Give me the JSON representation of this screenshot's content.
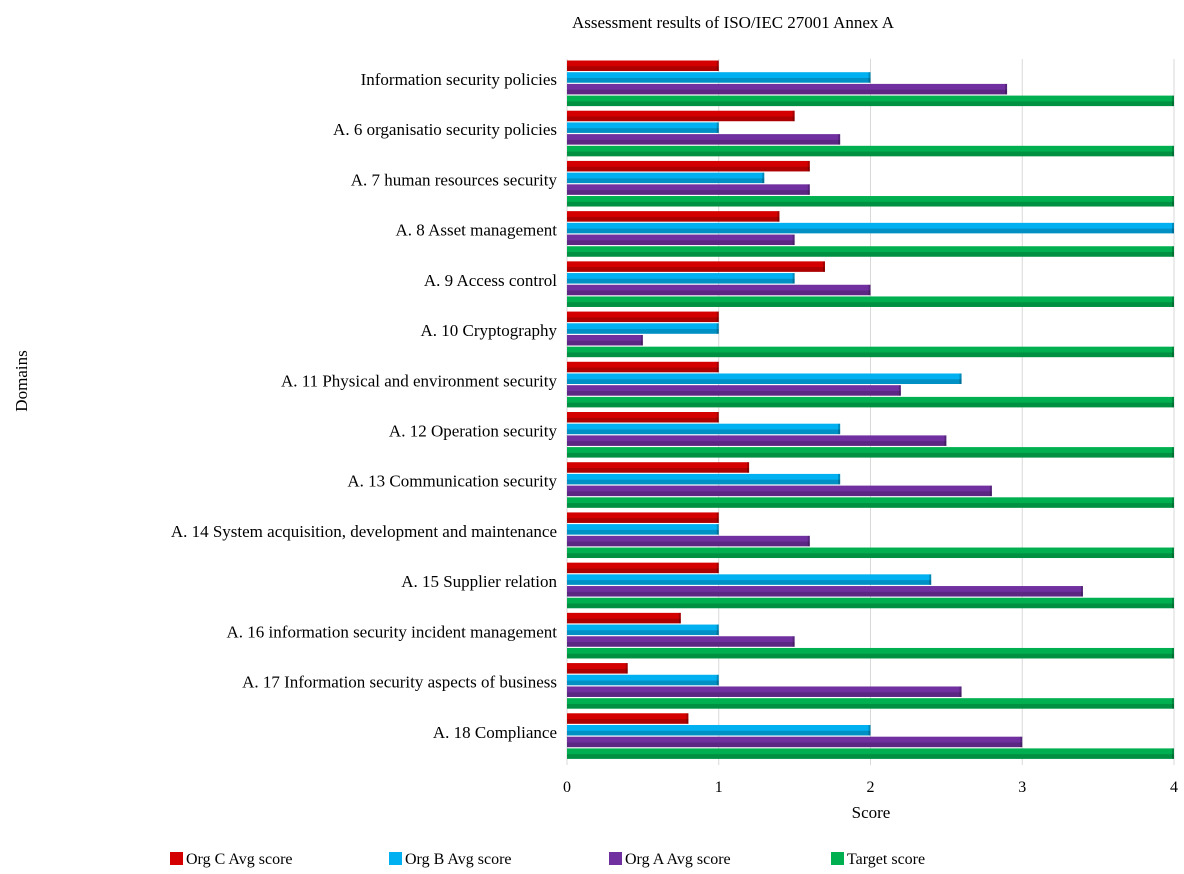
{
  "chart_data": {
    "type": "bar",
    "orientation": "horizontal",
    "title": "Assessment results of ISO/IEC 27001 Annex A",
    "xlabel": "Score",
    "ylabel": "Domains",
    "xlim": [
      0,
      4
    ],
    "xticks": [
      "0",
      "1",
      "2",
      "3",
      "4"
    ],
    "grid": true,
    "legend_position": "bottom",
    "categories": [
      "Information security policies",
      "A. 6 organisatio security policies",
      "A. 7 human resources security",
      "A. 8 Asset management",
      "A. 9 Access control",
      "A. 10 Cryptography",
      "A. 11 Physical and environment security",
      "A. 12 Operation security",
      "A. 13 Communication security",
      "A. 14 System acquisition, development and maintenance",
      "A. 15 Supplier relation",
      "A. 16 information security incident management",
      "A. 17 Information security aspects of business",
      "A. 18 Compliance"
    ],
    "series": [
      {
        "name": "Org C Avg score",
        "color": "#d40000",
        "values": [
          1.0,
          1.5,
          1.6,
          1.4,
          1.7,
          1.0,
          1.0,
          1.0,
          1.2,
          1.0,
          1.0,
          0.75,
          0.4,
          0.8
        ]
      },
      {
        "name": "Org B Avg score",
        "color": "#00b0f0",
        "values": [
          2.0,
          1.0,
          1.3,
          4.0,
          1.5,
          1.0,
          2.6,
          1.8,
          1.8,
          1.0,
          2.4,
          1.0,
          1.0,
          2.0
        ]
      },
      {
        "name": "Org A Avg score",
        "color": "#7030a0",
        "values": [
          2.9,
          1.8,
          1.6,
          1.5,
          2.0,
          0.5,
          2.2,
          2.5,
          2.8,
          1.6,
          3.4,
          1.5,
          2.6,
          3.0
        ]
      },
      {
        "name": "Target score",
        "color": "#00b050",
        "values": [
          4,
          4,
          4,
          4,
          4,
          4,
          4,
          4,
          4,
          4,
          4,
          4,
          4,
          4
        ]
      }
    ]
  }
}
